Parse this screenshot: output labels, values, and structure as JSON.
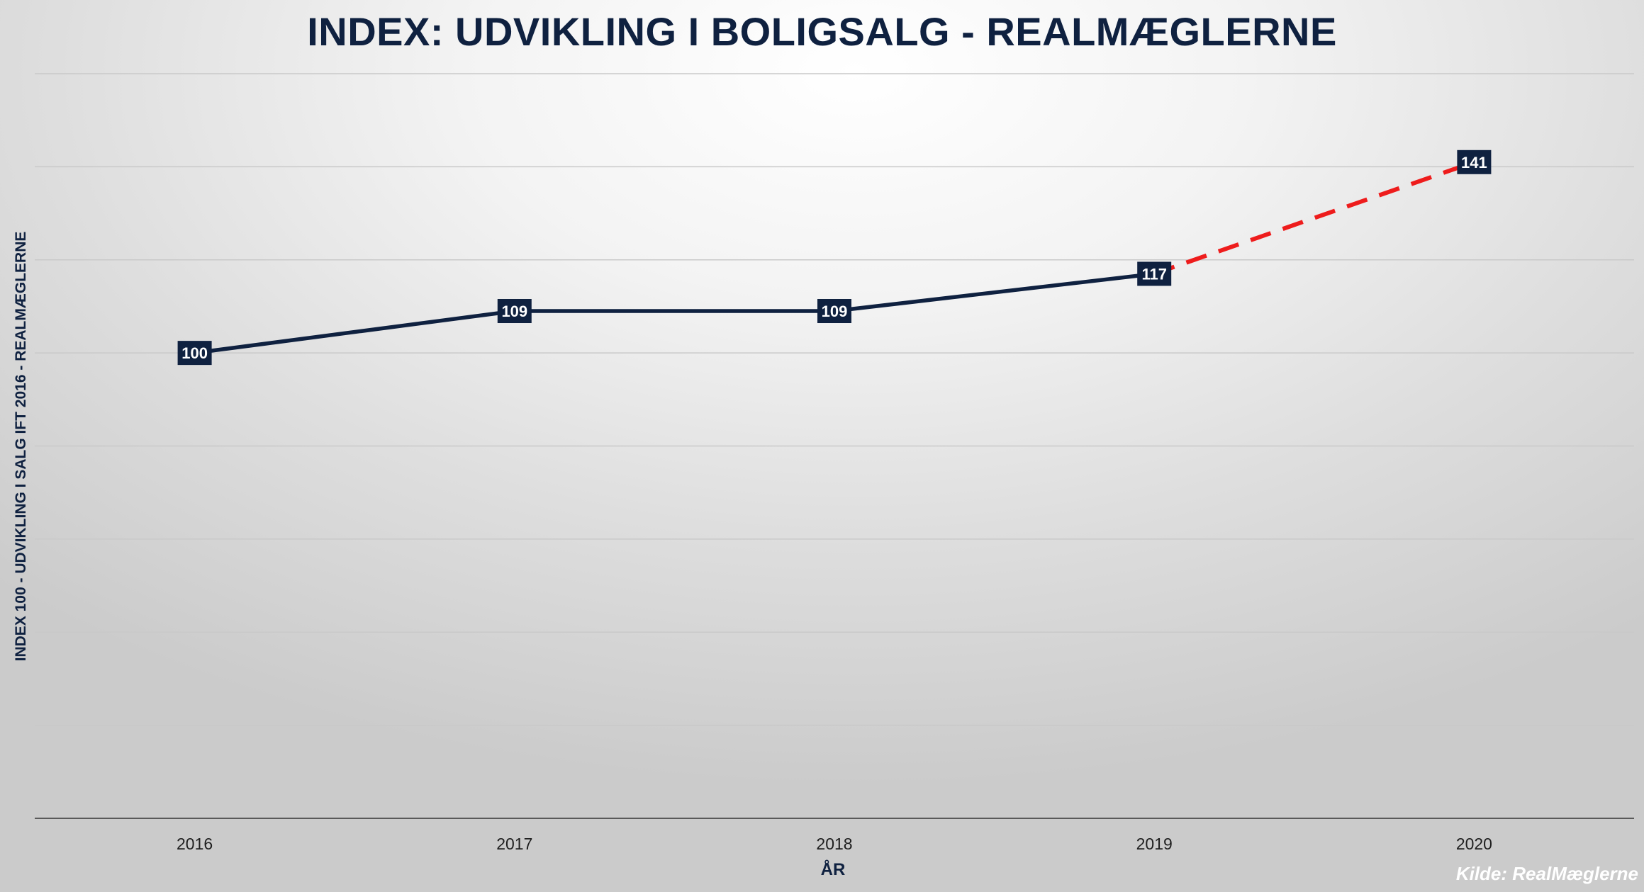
{
  "chart_data": {
    "type": "line",
    "title": "INDEX: UDVIKLING I BOLIGSALG - REALMÆGLERNE",
    "xlabel": "ÅR",
    "ylabel": "INDEX 100 - UDVIKLING I SALG IFT 2016 - REALMÆGLERNE",
    "categories": [
      "2016",
      "2017",
      "2018",
      "2019",
      "2020"
    ],
    "series": [
      {
        "values": [
          100,
          109,
          109,
          117,
          null
        ],
        "color": "#0f2140",
        "style": "solid"
      },
      {
        "values": [
          null,
          null,
          null,
          117,
          141
        ],
        "color": "#ee1c1c",
        "style": "dashed"
      }
    ],
    "point_labels": [
      "100",
      "109",
      "109",
      "117",
      "141"
    ],
    "ylim": [
      0,
      160
    ],
    "grid": true,
    "source": "Kilde: RealMæglerne"
  }
}
